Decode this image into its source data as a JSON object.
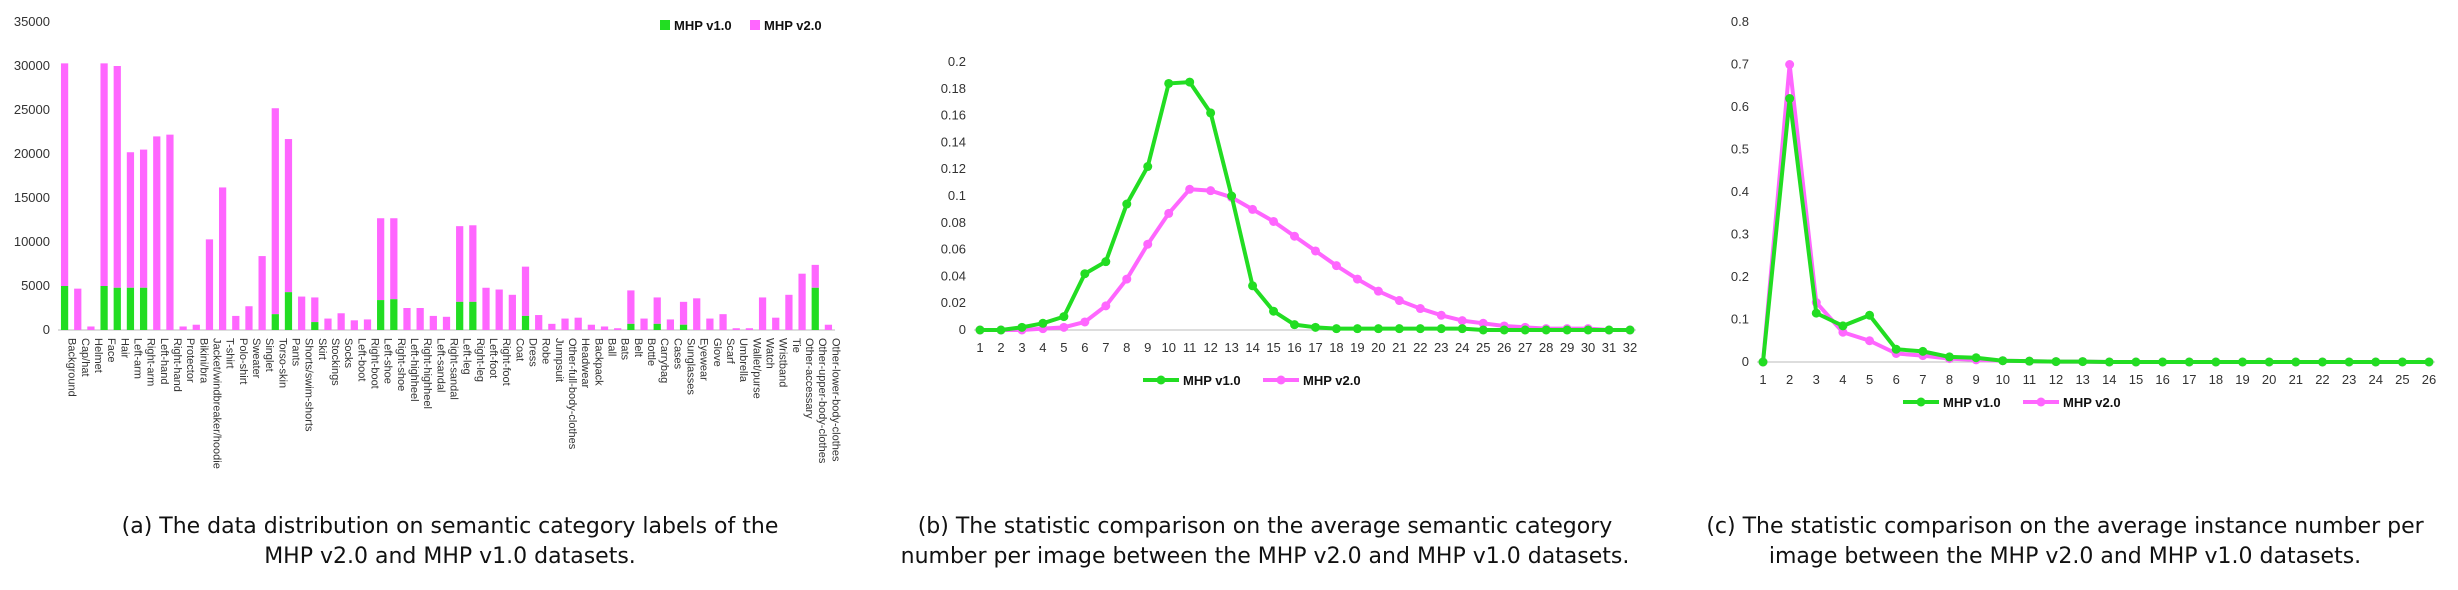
{
  "chart_data": [
    {
      "type": "bar",
      "stacked": true,
      "caption": "(a) The data distribution on semantic category labels of the MHP v2.0 and MHP v1.0 datasets.",
      "categories": [
        "Background",
        "Cap/hat",
        "Helmet",
        "Face",
        "Hair",
        "Left-arm",
        "Right-arm",
        "Left-hand",
        "Right-hand",
        "Protector",
        "Bikini/bra",
        "Jacket/windbreaker/hoodie",
        "T-shirt",
        "Polo-shirt",
        "Sweater",
        "Singlet",
        "Torso-skin",
        "Pants",
        "Shorts/swim-shorts",
        "Skirt",
        "Stockings",
        "Socks",
        "Left-boot",
        "Right-boot",
        "Left-shoe",
        "Right-shoe",
        "Left-highheel",
        "Right-highheel",
        "Left-sandal",
        "Right-sandal",
        "Left-leg",
        "Right-leg",
        "Left-foot",
        "Right-foot",
        "Coat",
        "Dress",
        "Robe",
        "Jumpsuit",
        "Other-full-body-clothes",
        "Headwear",
        "Backpack",
        "Ball",
        "Bats",
        "Belt",
        "Bottle",
        "Carrybag",
        "Cases",
        "Sunglasses",
        "Eyewear",
        "Glove",
        "Scarf",
        "Umbrella",
        "Wallet/purse",
        "Watch",
        "Wristband",
        "Tie",
        "Other-accessary",
        "Other-upper-body-clothes",
        "Other-lower-body-clothes"
      ],
      "series": [
        {
          "name": "MHP v1.0",
          "color": "#22dd22",
          "values": [
            5000,
            0,
            0,
            5000,
            4800,
            4800,
            4800,
            0,
            0,
            0,
            0,
            0,
            0,
            0,
            0,
            0,
            1800,
            4300,
            0,
            900,
            0,
            0,
            0,
            0,
            3400,
            3500,
            0,
            0,
            0,
            0,
            3200,
            3200,
            0,
            0,
            0,
            1600,
            0,
            0,
            0,
            0,
            0,
            0,
            0,
            700,
            0,
            700,
            0,
            600,
            0,
            0,
            0,
            0,
            0,
            0,
            0,
            0,
            0,
            4800,
            0
          ]
        },
        {
          "name": "MHP v2.0",
          "color": "#ff66ff",
          "values": [
            30300,
            4700,
            400,
            30300,
            30000,
            20200,
            20500,
            22000,
            22200,
            400,
            600,
            10300,
            16200,
            1600,
            2700,
            8400,
            25200,
            21700,
            3800,
            3700,
            1300,
            1900,
            1100,
            1200,
            12700,
            12700,
            2500,
            2500,
            1600,
            1500,
            11800,
            11900,
            4800,
            4600,
            4000,
            7200,
            1700,
            700,
            1300,
            1400,
            600,
            400,
            200,
            4500,
            1300,
            3700,
            1200,
            3200,
            3600,
            1300,
            1800,
            200,
            200,
            3700,
            1400,
            4000,
            6400,
            7400,
            600
          ]
        }
      ],
      "ylim": [
        0,
        35000
      ],
      "yticks": [
        "0",
        "5000",
        "10000",
        "15000",
        "20000",
        "25000",
        "30000",
        "35000"
      ],
      "legend": "top-right"
    },
    {
      "type": "line",
      "caption": "(b) The statistic comparison on the average semantic category number per image between the MHP v2.0 and MHP v1.0 datasets.",
      "x": [
        "1",
        "2",
        "3",
        "4",
        "5",
        "6",
        "7",
        "8",
        "9",
        "10",
        "11",
        "12",
        "13",
        "14",
        "15",
        "16",
        "17",
        "18",
        "19",
        "20",
        "21",
        "22",
        "23",
        "24",
        "25",
        "26",
        "27",
        "28",
        "29",
        "30",
        "31",
        "32"
      ],
      "series": [
        {
          "name": "MHP v1.0",
          "color": "#22dd22",
          "values": [
            0,
            0,
            0.002,
            0.005,
            0.01,
            0.042,
            0.051,
            0.094,
            0.122,
            0.184,
            0.185,
            0.162,
            0.1,
            0.033,
            0.014,
            0.004,
            0.002,
            0.001,
            0.001,
            0.001,
            0.001,
            0.001,
            0.001,
            0.001,
            0,
            0,
            0,
            0,
            0,
            0,
            0,
            0
          ]
        },
        {
          "name": "MHP v2.0",
          "color": "#ff66ff",
          "values": [
            0,
            0,
            0,
            0.001,
            0.002,
            0.006,
            0.018,
            0.038,
            0.064,
            0.087,
            0.105,
            0.104,
            0.099,
            0.09,
            0.081,
            0.07,
            0.059,
            0.048,
            0.038,
            0.029,
            0.022,
            0.016,
            0.011,
            0.007,
            0.005,
            0.003,
            0.002,
            0.001,
            0.001,
            0.001,
            0,
            0
          ]
        }
      ],
      "ylim": [
        0,
        0.2
      ],
      "yticks": [
        "0",
        "0.02",
        "0.04",
        "0.06",
        "0.08",
        "0.1",
        "0.12",
        "0.14",
        "0.16",
        "0.18",
        "0.2"
      ],
      "legend": "bottom-center"
    },
    {
      "type": "line",
      "caption": "(c) The statistic comparison on the average instance number per image between the MHP v2.0 and MHP v1.0 datasets.",
      "x": [
        "1",
        "2",
        "3",
        "4",
        "5",
        "6",
        "7",
        "8",
        "9",
        "10",
        "11",
        "12",
        "13",
        "14",
        "15",
        "16",
        "17",
        "18",
        "19",
        "20",
        "21",
        "22",
        "23",
        "24",
        "25",
        "26"
      ],
      "series": [
        {
          "name": "MHP v1.0",
          "color": "#22dd22",
          "values": [
            0,
            0.62,
            0.115,
            0.085,
            0.11,
            0.03,
            0.025,
            0.012,
            0.01,
            0.003,
            0.002,
            0.001,
            0.001,
            0,
            0,
            0,
            0,
            0,
            0,
            0,
            0,
            0,
            0,
            0,
            0,
            0
          ]
        },
        {
          "name": "MHP v2.0",
          "color": "#ff66ff",
          "values": [
            0,
            0.7,
            0.14,
            0.07,
            0.05,
            0.02,
            0.015,
            0.008,
            0.005,
            0.003,
            0.002,
            0.001,
            0.001,
            0,
            0,
            0,
            0,
            0,
            0,
            0,
            0,
            0,
            0,
            0,
            0,
            0
          ]
        }
      ],
      "ylim": [
        0,
        0.8
      ],
      "yticks": [
        "0",
        "0.1",
        "0.2",
        "0.3",
        "0.4",
        "0.5",
        "0.6",
        "0.7",
        "0.8"
      ],
      "legend": "bottom-center"
    }
  ]
}
